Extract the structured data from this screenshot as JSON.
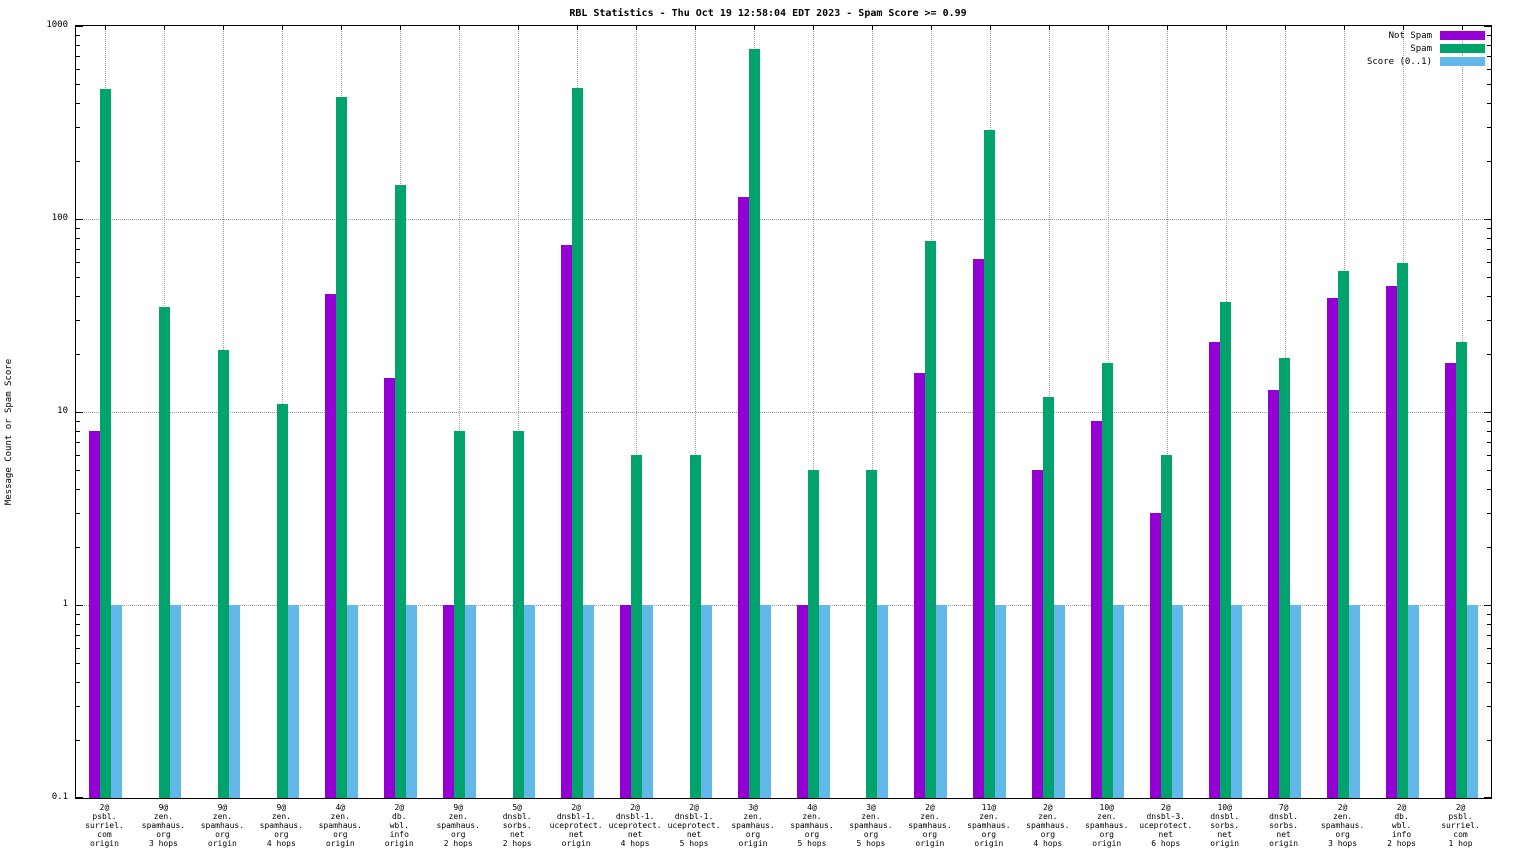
{
  "title": "RBL Statistics - Thu Oct 19 12:58:04 EDT 2023 - Spam Score >= 0.99",
  "ylabel": "Message Count or Spam Score",
  "chart_data": {
    "type": "bar",
    "yscale": "log",
    "ylim": [
      0.1,
      1000
    ],
    "yticks": [
      0.1,
      1,
      10,
      100,
      1000
    ],
    "grid": true,
    "legend_position": "top-right",
    "categories": [
      [
        "2@",
        "psbl.",
        "surriel.",
        "com",
        "origin"
      ],
      [
        "9@",
        "zen.",
        "spamhaus.",
        "org",
        "3 hops"
      ],
      [
        "9@",
        "zen.",
        "spamhaus.",
        "org",
        "origin"
      ],
      [
        "9@",
        "zen.",
        "spamhaus.",
        "org",
        "4 hops"
      ],
      [
        "4@",
        "zen.",
        "spamhaus.",
        "org",
        "origin"
      ],
      [
        "2@",
        "db.",
        "wbl.",
        "info",
        "origin"
      ],
      [
        "9@",
        "zen.",
        "spamhaus.",
        "org",
        "2 hops"
      ],
      [
        "5@",
        "dnsbl.",
        "sorbs.",
        "net",
        "2 hops"
      ],
      [
        "2@",
        "dnsbl-1.",
        "uceprotect.",
        "net",
        "origin"
      ],
      [
        "2@",
        "dnsbl-1.",
        "uceprotect.",
        "net",
        "4 hops"
      ],
      [
        "2@",
        "dnsbl-1.",
        "uceprotect.",
        "net",
        "5 hops"
      ],
      [
        "3@",
        "zen.",
        "spamhaus.",
        "org",
        "origin"
      ],
      [
        "4@",
        "zen.",
        "spamhaus.",
        "org",
        "5 hops"
      ],
      [
        "3@",
        "zen.",
        "spamhaus.",
        "org",
        "5 hops"
      ],
      [
        "2@",
        "zen.",
        "spamhaus.",
        "org",
        "origin"
      ],
      [
        "11@",
        "zen.",
        "spamhaus.",
        "org",
        "origin"
      ],
      [
        "2@",
        "zen.",
        "spamhaus.",
        "org",
        "4 hops"
      ],
      [
        "10@",
        "zen.",
        "spamhaus.",
        "org",
        "origin"
      ],
      [
        "2@",
        "dnsbl-3.",
        "uceprotect.",
        "net",
        "6 hops"
      ],
      [
        "10@",
        "dnsbl.",
        "sorbs.",
        "net",
        "origin"
      ],
      [
        "7@",
        "dnsbl.",
        "sorbs.",
        "net",
        "origin"
      ],
      [
        "2@",
        "zen.",
        "spamhaus.",
        "org",
        "3 hops"
      ],
      [
        "2@",
        "db.",
        "wbl.",
        "info",
        "2 hops"
      ],
      [
        "2@",
        "psbl.",
        "surriel.",
        "com",
        "1 hop"
      ]
    ],
    "series": [
      {
        "name": "Not Spam",
        "color": "#9400d3",
        "values": [
          8,
          null,
          null,
          null,
          41,
          15,
          1,
          null,
          73,
          1,
          null,
          130,
          1,
          null,
          16,
          62,
          5,
          9,
          3,
          23,
          13,
          39,
          45,
          18
        ]
      },
      {
        "name": "Spam",
        "color": "#00a36c",
        "values": [
          470,
          35,
          21,
          11,
          430,
          150,
          8,
          8,
          480,
          6,
          6,
          760,
          5,
          5,
          77,
          290,
          12,
          18,
          6,
          37,
          19,
          54,
          59,
          23
        ]
      },
      {
        "name": "Score (0..1)",
        "color": "#63b8ea",
        "values": [
          1,
          1,
          1,
          1,
          1,
          1,
          1,
          1,
          1,
          1,
          1,
          1,
          1,
          1,
          1,
          1,
          1,
          1,
          1,
          1,
          1,
          1,
          1,
          1
        ]
      }
    ]
  }
}
